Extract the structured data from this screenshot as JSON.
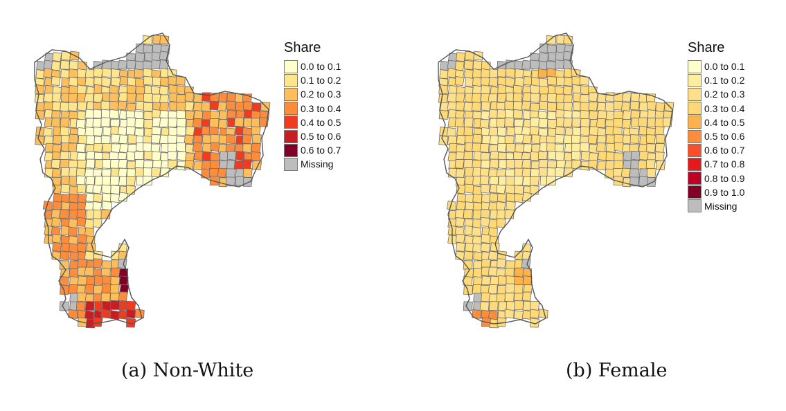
{
  "panels": [
    {
      "caption": "(a) Non-White",
      "legend": {
        "title": "Share",
        "items": [
          {
            "label": "0.0 to 0.1",
            "color": "#FFFFCC"
          },
          {
            "label": "0.1 to 0.2",
            "color": "#FFE58C"
          },
          {
            "label": "0.2 to 0.3",
            "color": "#FDBE5C"
          },
          {
            "label": "0.3 to 0.4",
            "color": "#FD8D3C"
          },
          {
            "label": "0.4 to 0.5",
            "color": "#F03B20"
          },
          {
            "label": "0.5 to 0.6",
            "color": "#C81D22"
          },
          {
            "label": "0.6 to 0.7",
            "color": "#800026"
          },
          {
            "label": "Missing",
            "color": "#BDBDBD"
          }
        ]
      }
    },
    {
      "caption": "(b) Female",
      "legend": {
        "title": "Share",
        "items": [
          {
            "label": "0.0 to 0.1",
            "color": "#FFFFCC"
          },
          {
            "label": "0.1 to 0.2",
            "color": "#FFEDA0"
          },
          {
            "label": "0.2 to 0.3",
            "color": "#FFE08A"
          },
          {
            "label": "0.3 to 0.4",
            "color": "#FED976"
          },
          {
            "label": "0.4 to 0.5",
            "color": "#FEB24C"
          },
          {
            "label": "0.5 to 0.6",
            "color": "#FD8D3C"
          },
          {
            "label": "0.6 to 0.7",
            "color": "#FC4E2A"
          },
          {
            "label": "0.7 to 0.8",
            "color": "#E31A1C"
          },
          {
            "label": "0.8 to 0.9",
            "color": "#BD0026"
          },
          {
            "label": "0.9 to 1.0",
            "color": "#800026"
          },
          {
            "label": "Missing",
            "color": "#BDBDBD"
          }
        ]
      }
    }
  ]
}
